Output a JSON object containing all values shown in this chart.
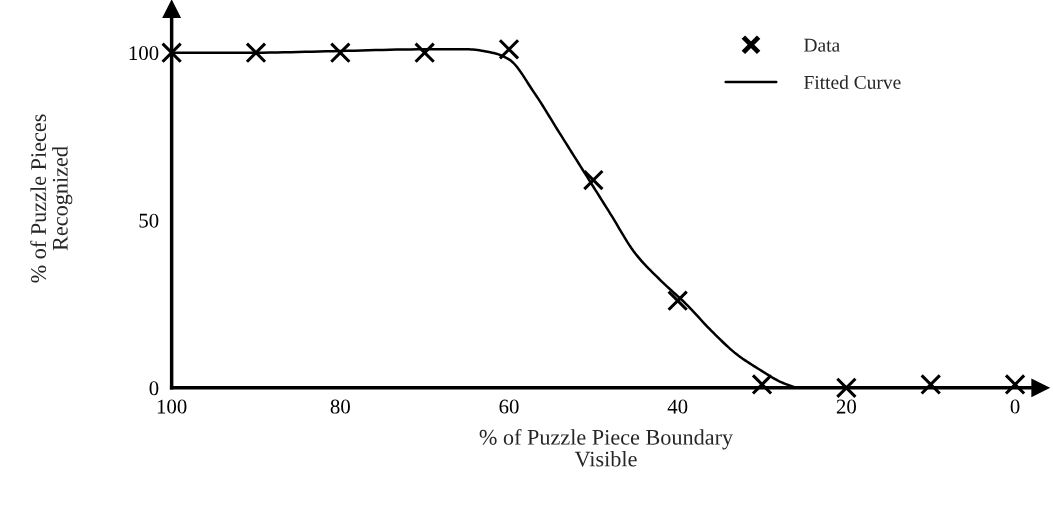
{
  "chart_data": {
    "type": "scatter",
    "xlabel": "% of Puzzle Piece Boundary\nVisible",
    "ylabel": "% of Puzzle Pieces\nRecognized",
    "xlim": [
      100,
      -3
    ],
    "ylim": [
      0,
      113
    ],
    "xticks": [
      100,
      80,
      60,
      40,
      20,
      0
    ],
    "yticks": [
      0,
      50,
      100
    ],
    "grid": false,
    "legend": "top right",
    "series": [
      {
        "name": "Data",
        "marker": "cross",
        "color": "#000000",
        "x": [
          100,
          90,
          80,
          70,
          60,
          50,
          40,
          30,
          20,
          10,
          0
        ],
        "values": [
          100,
          100,
          100,
          100,
          101,
          62,
          26,
          1,
          0,
          1,
          1
        ]
      },
      {
        "name": "Fitted Curve",
        "type": "line",
        "marker": "none",
        "line_style": "solid",
        "color": "#000000",
        "x": [
          100,
          90,
          80,
          70,
          65,
          62,
          60,
          57,
          54,
          51,
          48,
          45,
          42,
          39,
          36,
          33,
          30,
          28,
          26
        ],
        "values": [
          100,
          100,
          100.5,
          101,
          101,
          100,
          98,
          88,
          76,
          64,
          52,
          40,
          32,
          25,
          17,
          10,
          5,
          2,
          0
        ]
      }
    ]
  }
}
